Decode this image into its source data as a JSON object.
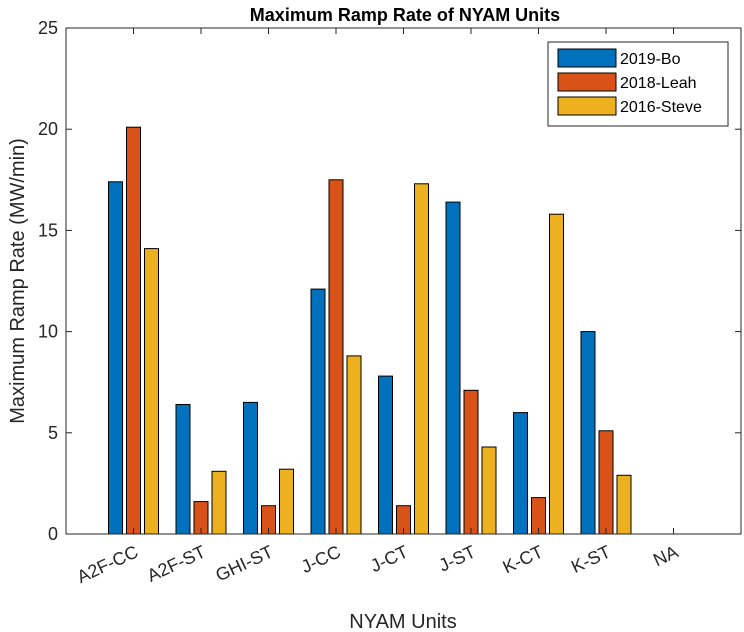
{
  "chart_data": {
    "type": "bar",
    "title": "Maximum Ramp Rate of NYAM Units",
    "xlabel": "NYAM Units",
    "ylabel": "Maximum Ramp Rate (MW/min)",
    "ylim": [
      0,
      25
    ],
    "yticks": [
      0,
      5,
      10,
      15,
      20,
      25
    ],
    "categories": [
      "A2F-CC",
      "A2F-ST",
      "GHI-ST",
      "J-CC",
      "J-CT",
      "J-ST",
      "K-CT",
      "K-ST",
      "NA"
    ],
    "series": [
      {
        "name": "2019-Bo",
        "color": "#0072BD",
        "values": [
          17.4,
          6.4,
          6.5,
          12.1,
          7.8,
          16.4,
          6.0,
          10.0,
          null
        ]
      },
      {
        "name": "2018-Leah",
        "color": "#D95319",
        "values": [
          20.1,
          1.6,
          1.4,
          17.5,
          1.4,
          7.1,
          1.8,
          5.1,
          null
        ]
      },
      {
        "name": "2016-Steve",
        "color": "#EDB120",
        "values": [
          14.1,
          3.1,
          3.2,
          8.8,
          17.3,
          4.3,
          15.8,
          2.9,
          null
        ]
      }
    ],
    "legend": "top-right",
    "grid": false
  }
}
